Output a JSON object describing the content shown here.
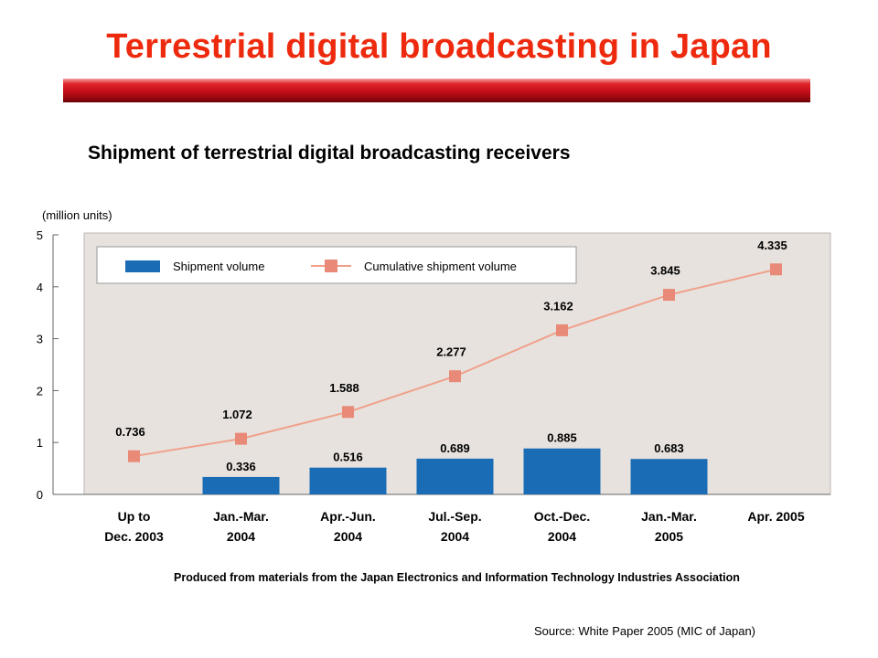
{
  "slide": {
    "title": "Terrestrial digital broadcasting in Japan",
    "subtitle": "Shipment of terrestrial digital broadcasting receivers",
    "source": "Source: White Paper 2005 (MIC of Japan)"
  },
  "colors": {
    "title": "#ee2a0e",
    "bar": "#1a6db5",
    "line": "#f0a08a",
    "marker": "#e98a78",
    "plot_bg": "#e7e2de"
  },
  "chart_data": {
    "type": "bar",
    "unit_label": "(million units)",
    "categories": [
      [
        "Up to",
        "Dec. 2003"
      ],
      [
        "Jan.-Mar.",
        "2004"
      ],
      [
        "Apr.-Jun.",
        "2004"
      ],
      [
        "Jul.-Sep.",
        "2004"
      ],
      [
        "Oct.-Dec.",
        "2004"
      ],
      [
        "Jan.-Mar.",
        "2005"
      ],
      [
        "Apr. 2005"
      ]
    ],
    "series": [
      {
        "name": "Shipment volume",
        "type": "bar",
        "values": [
          null,
          0.336,
          0.516,
          0.689,
          0.885,
          0.683,
          null
        ],
        "labels": [
          null,
          "0.336",
          "0.516",
          "0.689",
          "0.885",
          "0.683",
          null
        ]
      },
      {
        "name": "Cumulative shipment volume",
        "type": "line",
        "values": [
          0.736,
          1.072,
          1.588,
          2.277,
          3.162,
          3.845,
          4.335
        ],
        "labels": [
          "0.736",
          "1.072",
          "1.588",
          "2.277",
          "3.162",
          "3.845",
          "4.335"
        ]
      }
    ],
    "yticks": [
      "0",
      "1",
      "2",
      "3",
      "4",
      "5"
    ],
    "ylim": [
      0,
      5
    ],
    "legend_position": "top-left",
    "grid": false,
    "note": "Produced from materials from the Japan Electronics and Information Technology Industries Association"
  }
}
